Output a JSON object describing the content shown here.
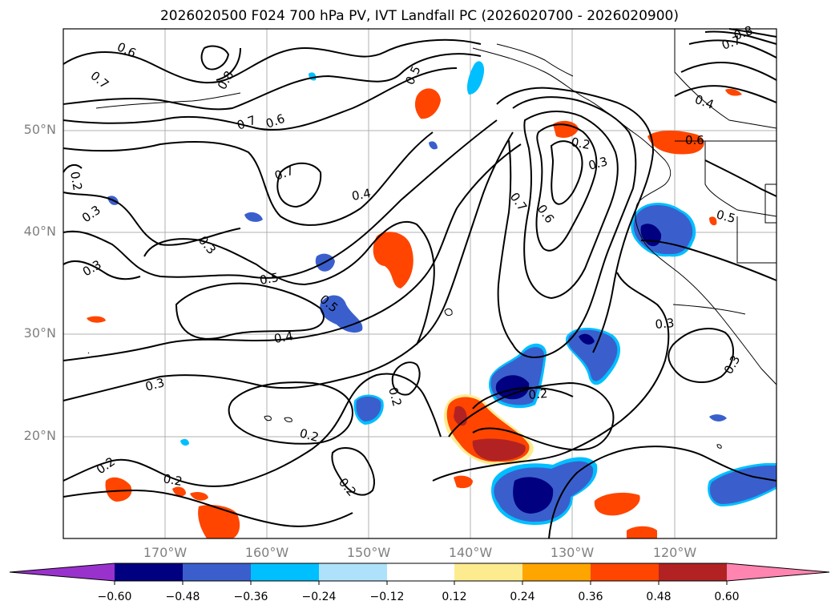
{
  "title": "2026020500 F024 700 hPa PV, IVT Landfall PC (2026020700 - 2026020900)",
  "map": {
    "lat_labels": [
      "50°N",
      "40°N",
      "30°N",
      "20°N"
    ],
    "lon_labels": [
      "170°W",
      "160°W",
      "150°W",
      "140°W",
      "130°W",
      "120°W"
    ],
    "extent": {
      "lon_min": -180,
      "lon_max": -110,
      "lat_min": 10,
      "lat_max": 60
    },
    "contour_labels": [
      "0.6",
      "0.7",
      "0.8",
      "0.7",
      "0.6",
      "0.5",
      "0.7",
      "0.4",
      "0.7",
      "0.6",
      "0.2",
      "0.3",
      "0.3",
      "0.3",
      "0.5",
      "0.5",
      "0.4",
      "0.3",
      "0.2",
      "0.2",
      "0.2",
      "0.2",
      "0.2",
      "0.2",
      "0.3",
      "0.2",
      "0.3",
      "0.3",
      "0.4",
      "0.5",
      "0.6",
      "0.7",
      "0.8"
    ]
  },
  "colorbar": {
    "tick_labels": [
      "−0.60",
      "−0.48",
      "−0.36",
      "−0.24",
      "−0.12",
      "0.12",
      "0.24",
      "0.36",
      "0.48",
      "0.60"
    ],
    "colors": [
      "#9932cc",
      "#000080",
      "#3a5fcd",
      "#00bfff",
      "#aee2fa",
      "#ffffff",
      "#fdec8f",
      "#ffa500",
      "#ff4500",
      "#b22222",
      "#ff85b0"
    ]
  },
  "fill_colors": {
    "dark_red": "#b22222",
    "orange_red": "#ff4500",
    "orange": "#ffa500",
    "yellow": "#fdec8f",
    "navy": "#000080",
    "blue": "#3a5fcd",
    "sky": "#00bfff",
    "light": "#aee2fa"
  }
}
